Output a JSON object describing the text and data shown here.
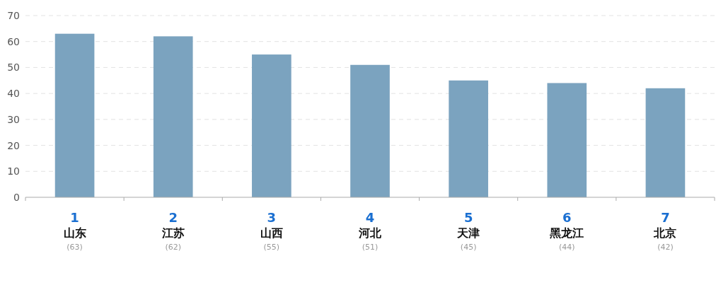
{
  "chart_data": {
    "type": "bar",
    "categories": [
      "山东",
      "江苏",
      "山西",
      "河北",
      "天津",
      "黑龙江",
      "北京"
    ],
    "values": [
      63,
      62,
      55,
      51,
      45,
      44,
      42
    ],
    "value_labels": [
      "(63)",
      "(62)",
      "(55)",
      "(51)",
      "(45)",
      "(44)",
      "(42)"
    ],
    "color": "#7ba3bf",
    "ylim": [
      0,
      70
    ],
    "yticks": [
      0,
      10,
      20,
      30,
      40,
      50,
      60,
      70
    ],
    "grid": "y",
    "annotations": [
      "1",
      "2",
      "3",
      "4",
      "5",
      "6",
      "7"
    ]
  }
}
